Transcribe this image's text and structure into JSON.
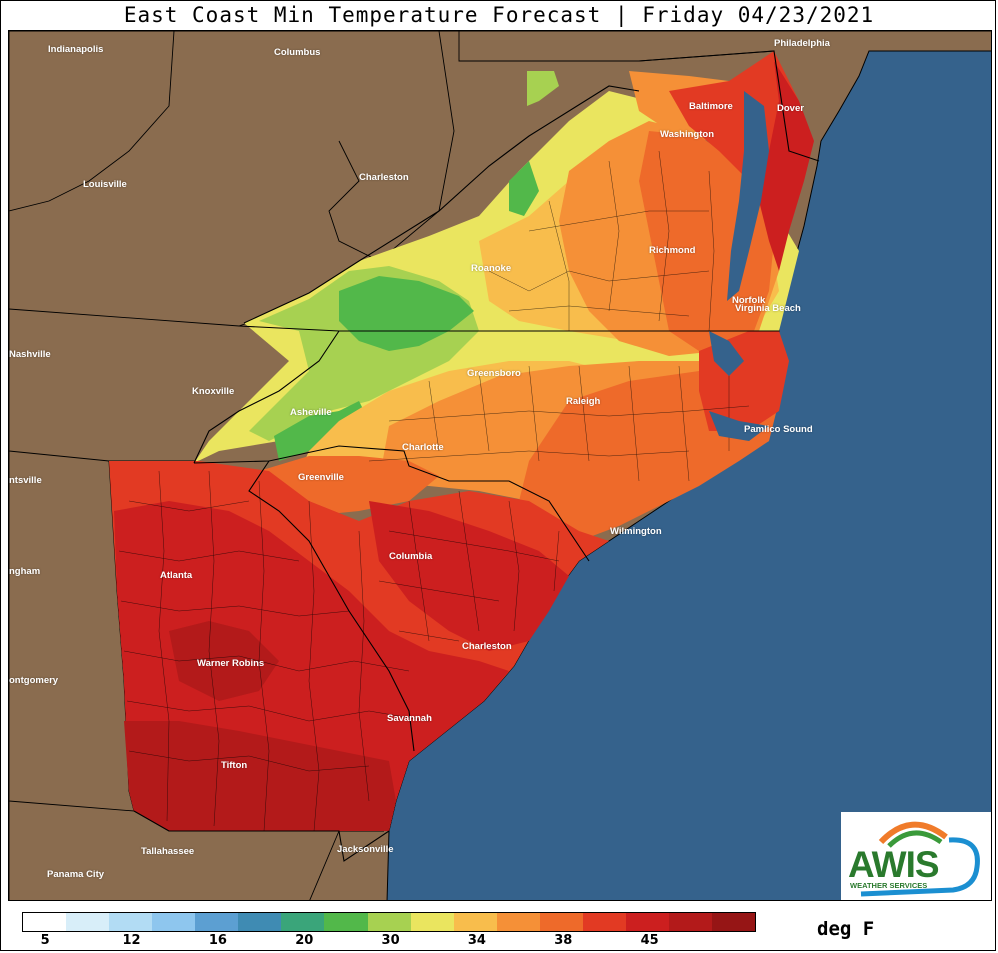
{
  "title": "East Coast Min Temperature Forecast | Friday 04/23/2021",
  "units": "deg F",
  "legend": {
    "colors": [
      "#ffffff",
      "#d8eef9",
      "#b2dcf4",
      "#8ec6ee",
      "#5c9fd2",
      "#3f8bb3",
      "#3aa57a",
      "#52b84a",
      "#a7d151",
      "#eae55f",
      "#f8bd4c",
      "#f59037",
      "#ee6a2a",
      "#e23a23",
      "#cc1f1f",
      "#b31a1a",
      "#961515"
    ],
    "tick_labels": [
      "5",
      "12",
      "16",
      "20",
      "30",
      "34",
      "38",
      "45"
    ]
  },
  "cities": [
    "Indianapolis",
    "Columbus",
    "Philadelphia",
    "Baltimore",
    "Dover",
    "Washington",
    "Louisville",
    "Charleston",
    "Richmond",
    "Roanoke",
    "Norfolk",
    "Virginia Beach",
    "Nashville",
    "Knoxville",
    "Greensboro",
    "Raleigh",
    "Asheville",
    "Pamlico Sound",
    "Charlotte",
    "ntsville",
    "Greenville",
    "Wilmington",
    "Columbia",
    "ngham",
    "Atlanta",
    "Charleston",
    "Warner Robins",
    "ontgomery",
    "Savannah",
    "Tifton",
    "Jacksonville",
    "Tallahassee",
    "Panama City"
  ],
  "logo": {
    "brand": "AWIS",
    "tagline": "WEATHER SERVICES"
  }
}
